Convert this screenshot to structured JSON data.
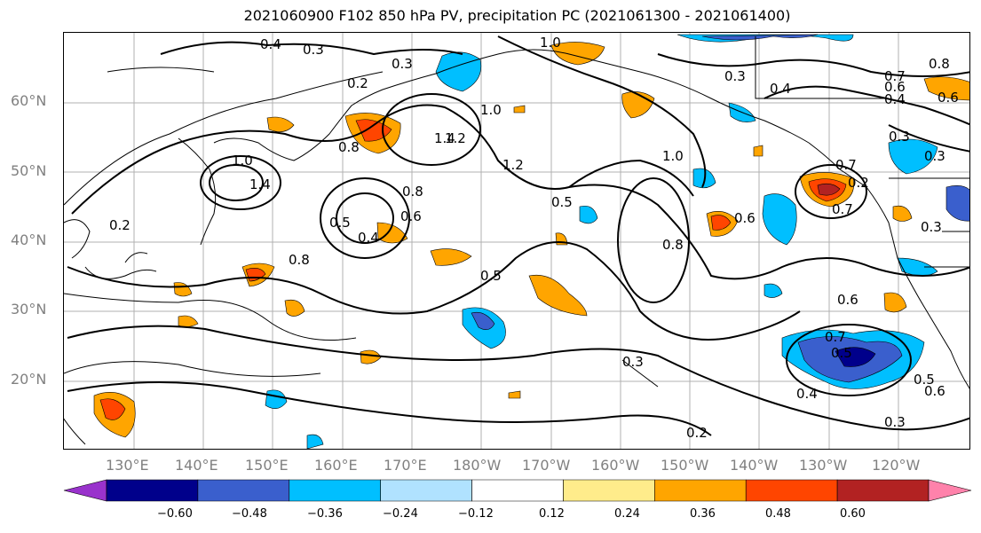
{
  "title": "2021060900 F102 850 hPa PV, precipitation PC (2021061300 - 2021061400)",
  "lat_labels": [
    "60°N",
    "50°N",
    "40°N",
    "30°N",
    "20°N"
  ],
  "lon_labels": [
    "130°E",
    "140°E",
    "150°E",
    "160°E",
    "170°E",
    "180°W",
    "170°W",
    "160°W",
    "150°W",
    "140°W",
    "130°W",
    "120°W"
  ],
  "colorbar": {
    "ticks": [
      "−0.60",
      "−0.48",
      "−0.36",
      "−0.24",
      "−0.12",
      "0.12",
      "0.24",
      "0.36",
      "0.48",
      "0.60"
    ],
    "colors": [
      "#9932cc",
      "#00008b",
      "#3a5fcd",
      "#00bfff",
      "#b0e2ff",
      "#ffffff",
      "#ffec8b",
      "#ffa500",
      "#ff4500",
      "#b22222",
      "#ff82ab"
    ]
  },
  "contour_labels": [
    "0.4",
    "0.3",
    "1.0",
    "0.2",
    "0.3",
    "0.8",
    "0.7",
    "0.6",
    "0.4",
    "0.6",
    "0.3",
    "0.4",
    "1.4",
    "1.2",
    "1.0",
    "0.3",
    "0.3",
    "0.2",
    "1.0",
    "0.8",
    "1.4",
    "1.2",
    "1.0",
    "0.5",
    "0.7",
    "0.2",
    "0.8",
    "0.6",
    "0.4",
    "0.5",
    "0.6",
    "0.8",
    "0.7",
    "0.3",
    "0.8",
    "0.5",
    "0.6",
    "0.7",
    "0.5",
    "0.4",
    "0.5",
    "0.6",
    "0.3",
    "0.2",
    "0.3"
  ]
}
